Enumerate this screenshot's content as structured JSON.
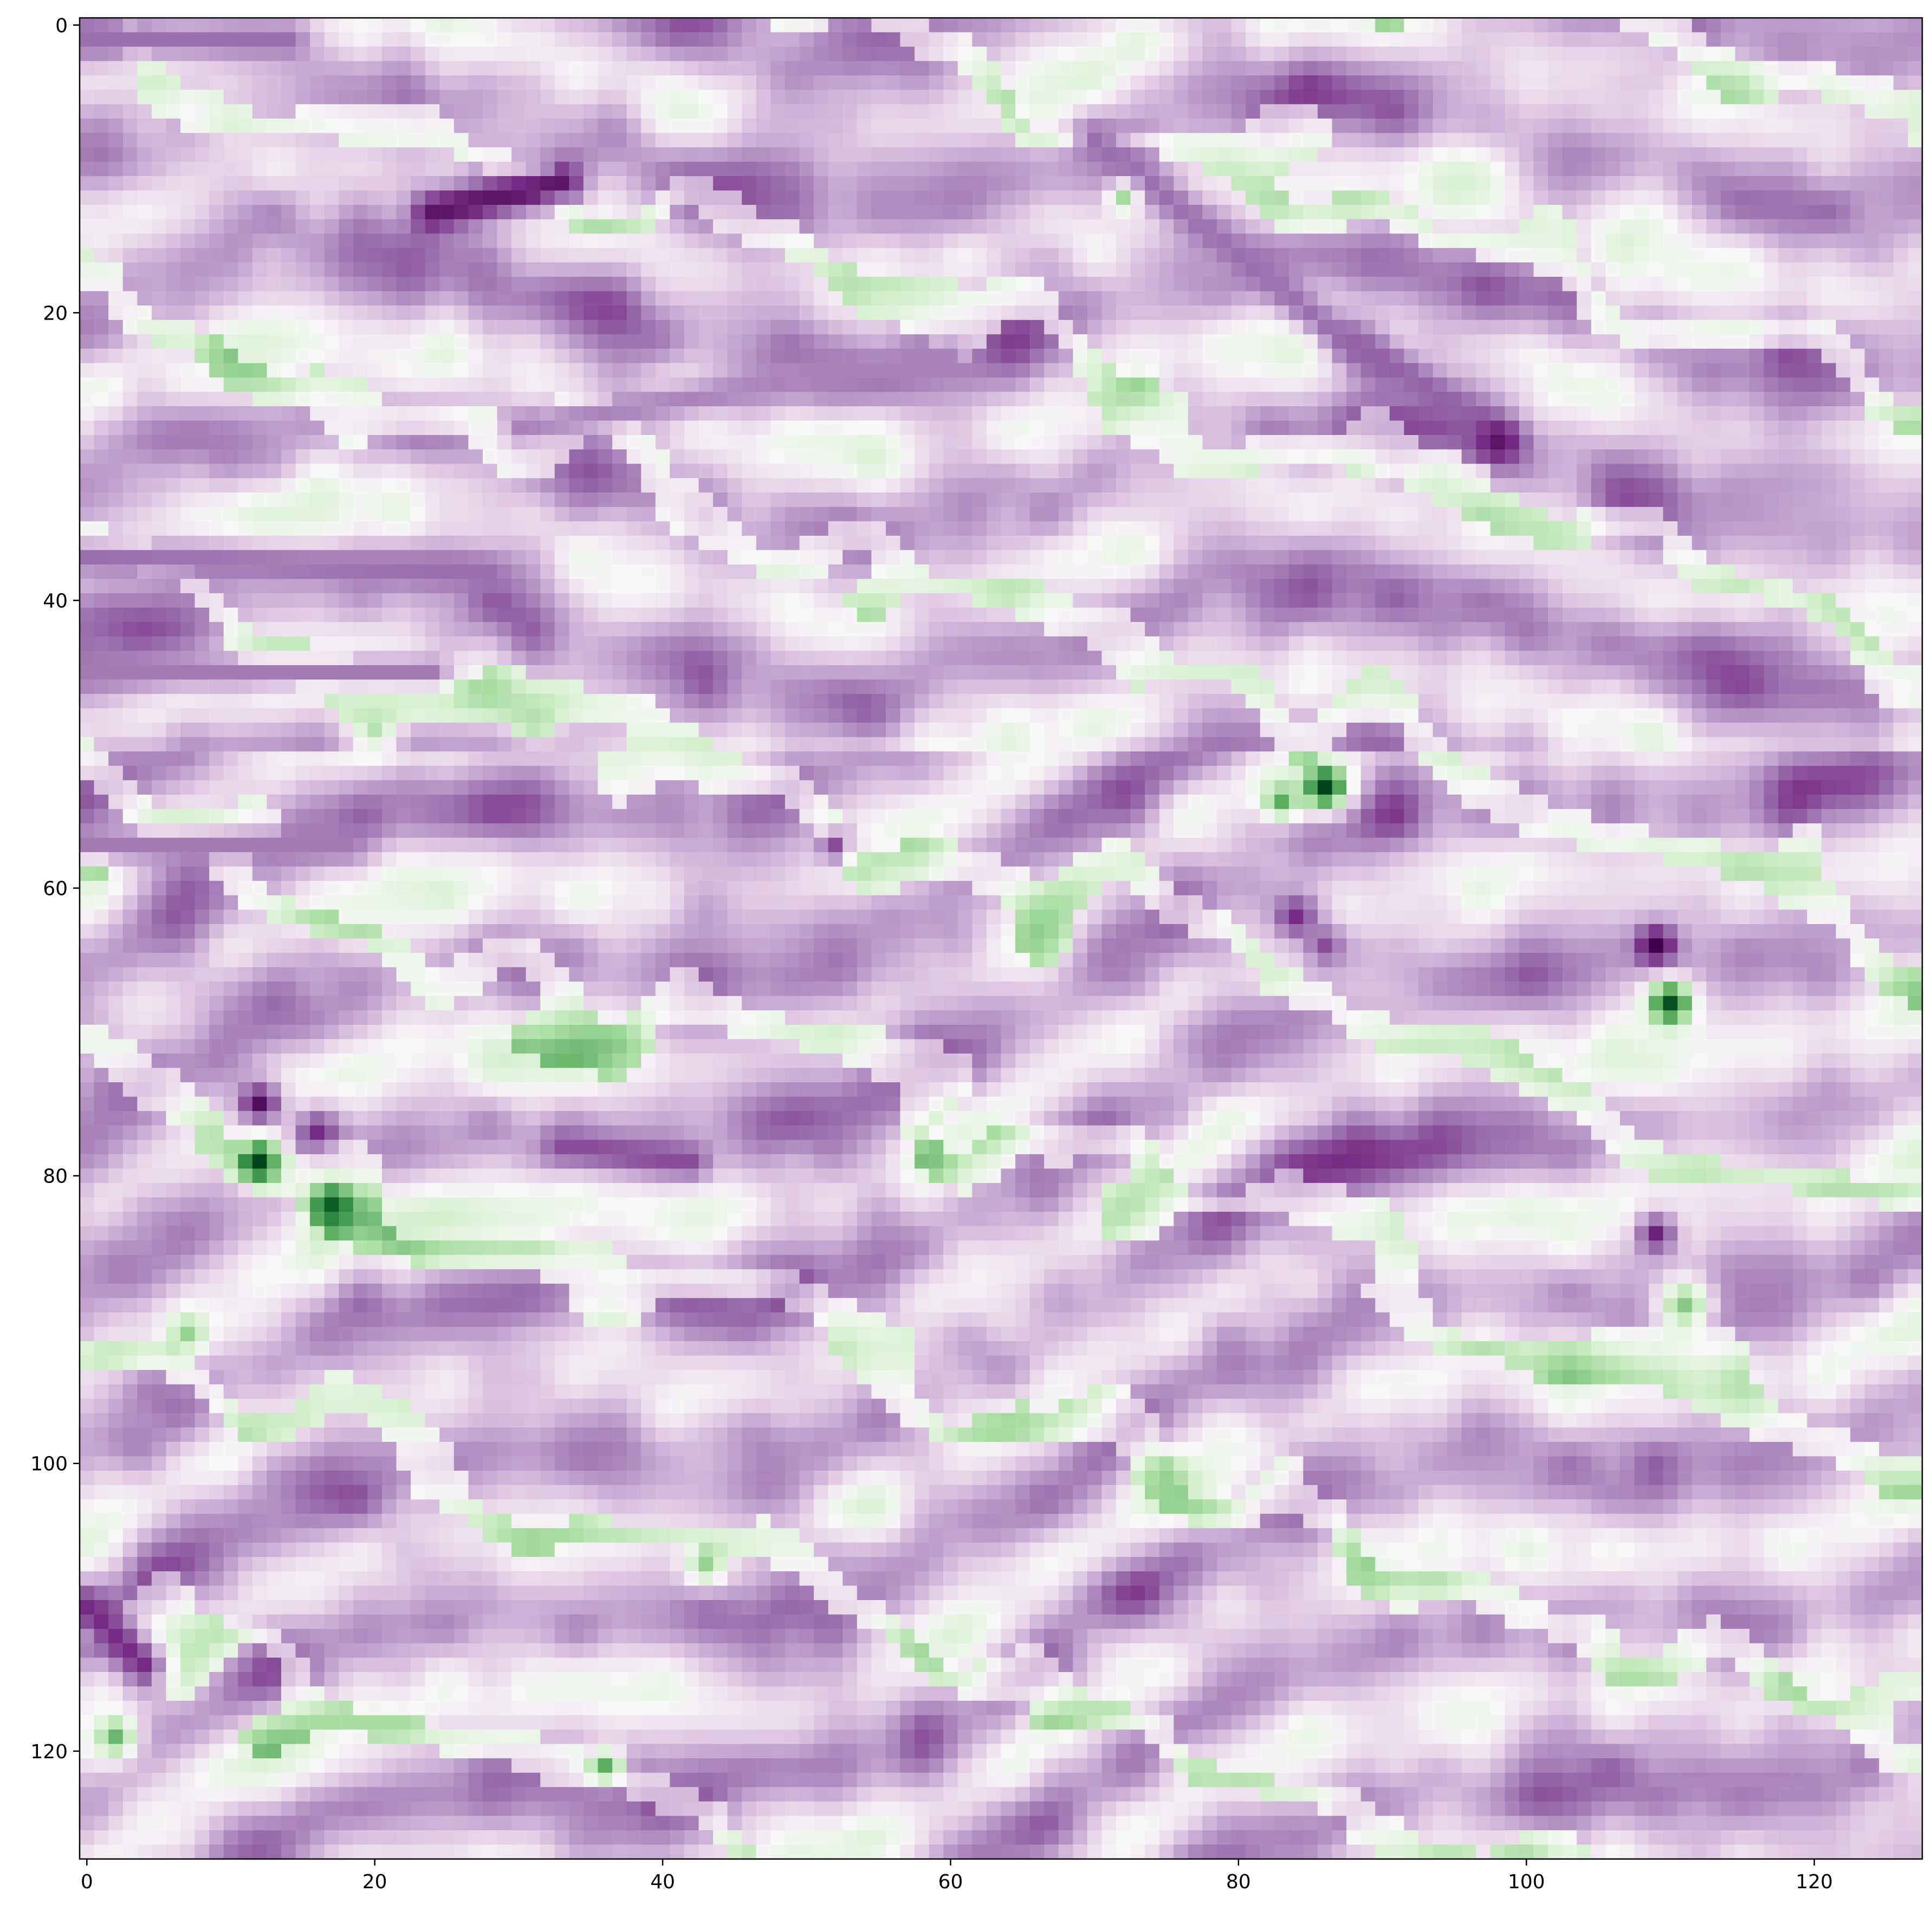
{
  "chart_data": {
    "type": "heatmap",
    "title": "",
    "xlabel": "",
    "ylabel": "",
    "colormap": "PRGn",
    "colormap_stops": [
      "#40004b",
      "#762a83",
      "#9970ab",
      "#c2a5cf",
      "#e7d4e8",
      "#f7f7f7",
      "#d9f0d3",
      "#a6dba0",
      "#5aae61",
      "#1b7837",
      "#00441b"
    ],
    "shape": [
      128,
      128
    ],
    "x_range": [
      -0.5,
      127.5
    ],
    "y_range": [
      127.5,
      -0.5
    ],
    "value_note": "values normalized 0 (dark purple) to 1 (dark green); dominant field is light purple/white with a few green spots",
    "xticks": [
      0,
      20,
      40,
      60,
      80,
      100,
      120
    ],
    "yticks": [
      0,
      20,
      40,
      60,
      80,
      100,
      120
    ],
    "xtick_labels": [
      "0",
      "20",
      "40",
      "60",
      "80",
      "100",
      "120"
    ],
    "ytick_labels": [
      "0",
      "20",
      "40",
      "60",
      "80",
      "100",
      "120"
    ],
    "base_level": 0.36,
    "features": [
      {
        "kind": "streak",
        "x0": 24,
        "y0": 13,
        "x1": 33,
        "y1": 11,
        "width": 1.6,
        "value": 0.05
      },
      {
        "kind": "streak",
        "x0": 0,
        "y0": 1,
        "x1": 14,
        "y1": 1,
        "width": 1.5,
        "value": 0.2
      },
      {
        "kind": "streak",
        "x0": 0,
        "y0": 37,
        "x1": 28,
        "y1": 38,
        "width": 1.4,
        "value": 0.2
      },
      {
        "kind": "streak",
        "x0": 0,
        "y0": 45,
        "x1": 24,
        "y1": 45,
        "width": 1.2,
        "value": 0.22
      },
      {
        "kind": "streak",
        "x0": 0,
        "y0": 57,
        "x1": 18,
        "y1": 57,
        "width": 1.2,
        "value": 0.22
      },
      {
        "kind": "streak",
        "x0": 33,
        "y0": 78,
        "x1": 42,
        "y1": 79,
        "width": 1.5,
        "value": 0.15
      },
      {
        "kind": "streak",
        "x0": 70,
        "y0": 8,
        "x1": 90,
        "y1": 24,
        "width": 1.4,
        "value": 0.2
      },
      {
        "kind": "streak",
        "x0": 88,
        "y0": 22,
        "x1": 99,
        "y1": 29,
        "width": 1.3,
        "value": 0.18
      },
      {
        "kind": "streak",
        "x0": 0,
        "y0": 110,
        "x1": 4,
        "y1": 114,
        "width": 1.8,
        "value": 0.1
      },
      {
        "kind": "streak",
        "x0": 30,
        "y0": 28,
        "x1": 60,
        "y1": 23,
        "width": 1.3,
        "value": 0.24
      },
      {
        "kind": "spot",
        "x": 12,
        "y": 75,
        "r": 1.6,
        "value": 0.03
      },
      {
        "kind": "spot",
        "x": 16,
        "y": 77,
        "r": 1.4,
        "value": 0.1
      },
      {
        "kind": "spot",
        "x": 84,
        "y": 62,
        "r": 1.8,
        "value": 0.1
      },
      {
        "kind": "spot",
        "x": 86,
        "y": 64,
        "r": 1.5,
        "value": 0.15
      },
      {
        "kind": "spot",
        "x": 109,
        "y": 64,
        "r": 1.5,
        "value": 0.0
      },
      {
        "kind": "spot",
        "x": 109,
        "y": 84,
        "r": 1.4,
        "value": 0.08
      },
      {
        "kind": "spot",
        "x": 98,
        "y": 29,
        "r": 1.4,
        "value": 0.05
      },
      {
        "kind": "spot",
        "x": 52,
        "y": 57,
        "r": 1.3,
        "value": 0.15
      },
      {
        "kind": "spot",
        "x": 12,
        "y": 79,
        "r": 1.5,
        "value": 1.0
      },
      {
        "kind": "spot",
        "x": 17,
        "y": 82,
        "r": 1.5,
        "value": 0.95
      },
      {
        "kind": "spot",
        "x": 86,
        "y": 53,
        "r": 1.6,
        "value": 1.0
      },
      {
        "kind": "spot",
        "x": 83,
        "y": 54,
        "r": 1.3,
        "value": 0.8
      },
      {
        "kind": "spot",
        "x": 110,
        "y": 68,
        "r": 1.5,
        "value": 0.98
      },
      {
        "kind": "spot",
        "x": 2,
        "y": 119,
        "r": 1.4,
        "value": 0.78
      },
      {
        "kind": "spot",
        "x": 36,
        "y": 121,
        "r": 1.2,
        "value": 0.8
      },
      {
        "kind": "spot",
        "x": 7,
        "y": 91,
        "r": 1.5,
        "value": 0.72
      },
      {
        "kind": "spot",
        "x": 111,
        "y": 89,
        "r": 2.0,
        "value": 0.74
      },
      {
        "kind": "spot",
        "x": 75,
        "y": 101,
        "r": 2.0,
        "value": 0.72
      },
      {
        "kind": "spot",
        "x": 43,
        "y": 107,
        "r": 1.6,
        "value": 0.72
      },
      {
        "kind": "spot",
        "x": 72,
        "y": 12,
        "r": 1.0,
        "value": 0.7
      },
      {
        "kind": "spot",
        "x": 20,
        "y": 49,
        "r": 1.6,
        "value": 0.66
      }
    ]
  }
}
